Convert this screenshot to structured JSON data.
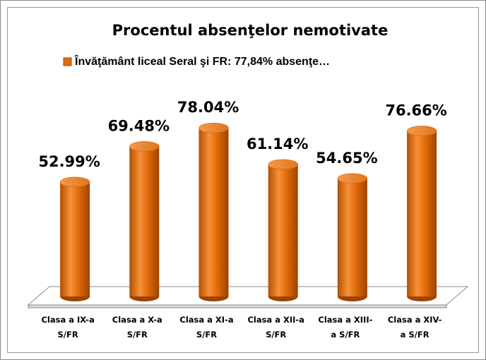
{
  "chart_data": {
    "type": "bar",
    "title": "Procentul absenţelor nemotivate",
    "categories": [
      "Clasa a IX-a S/FR",
      "Clasa a X-a S/FR",
      "Clasa a XI-a S/FR",
      "Clasa a XII-a S/FR",
      "Clasa a XIII-a S/FR",
      "Clasa a XIV-a S/FR"
    ],
    "series": [
      {
        "name": "Învăţământ liceal Seral şi FR: 77,84% absenţe…",
        "color": "#e46c0a",
        "values": [
          52.99,
          69.48,
          78.04,
          61.14,
          54.65,
          76.66
        ],
        "value_labels": [
          "52.99%",
          "69.48%",
          "78.04%",
          "61.14%",
          "54.65%",
          "76.66%"
        ]
      }
    ]
  }
}
